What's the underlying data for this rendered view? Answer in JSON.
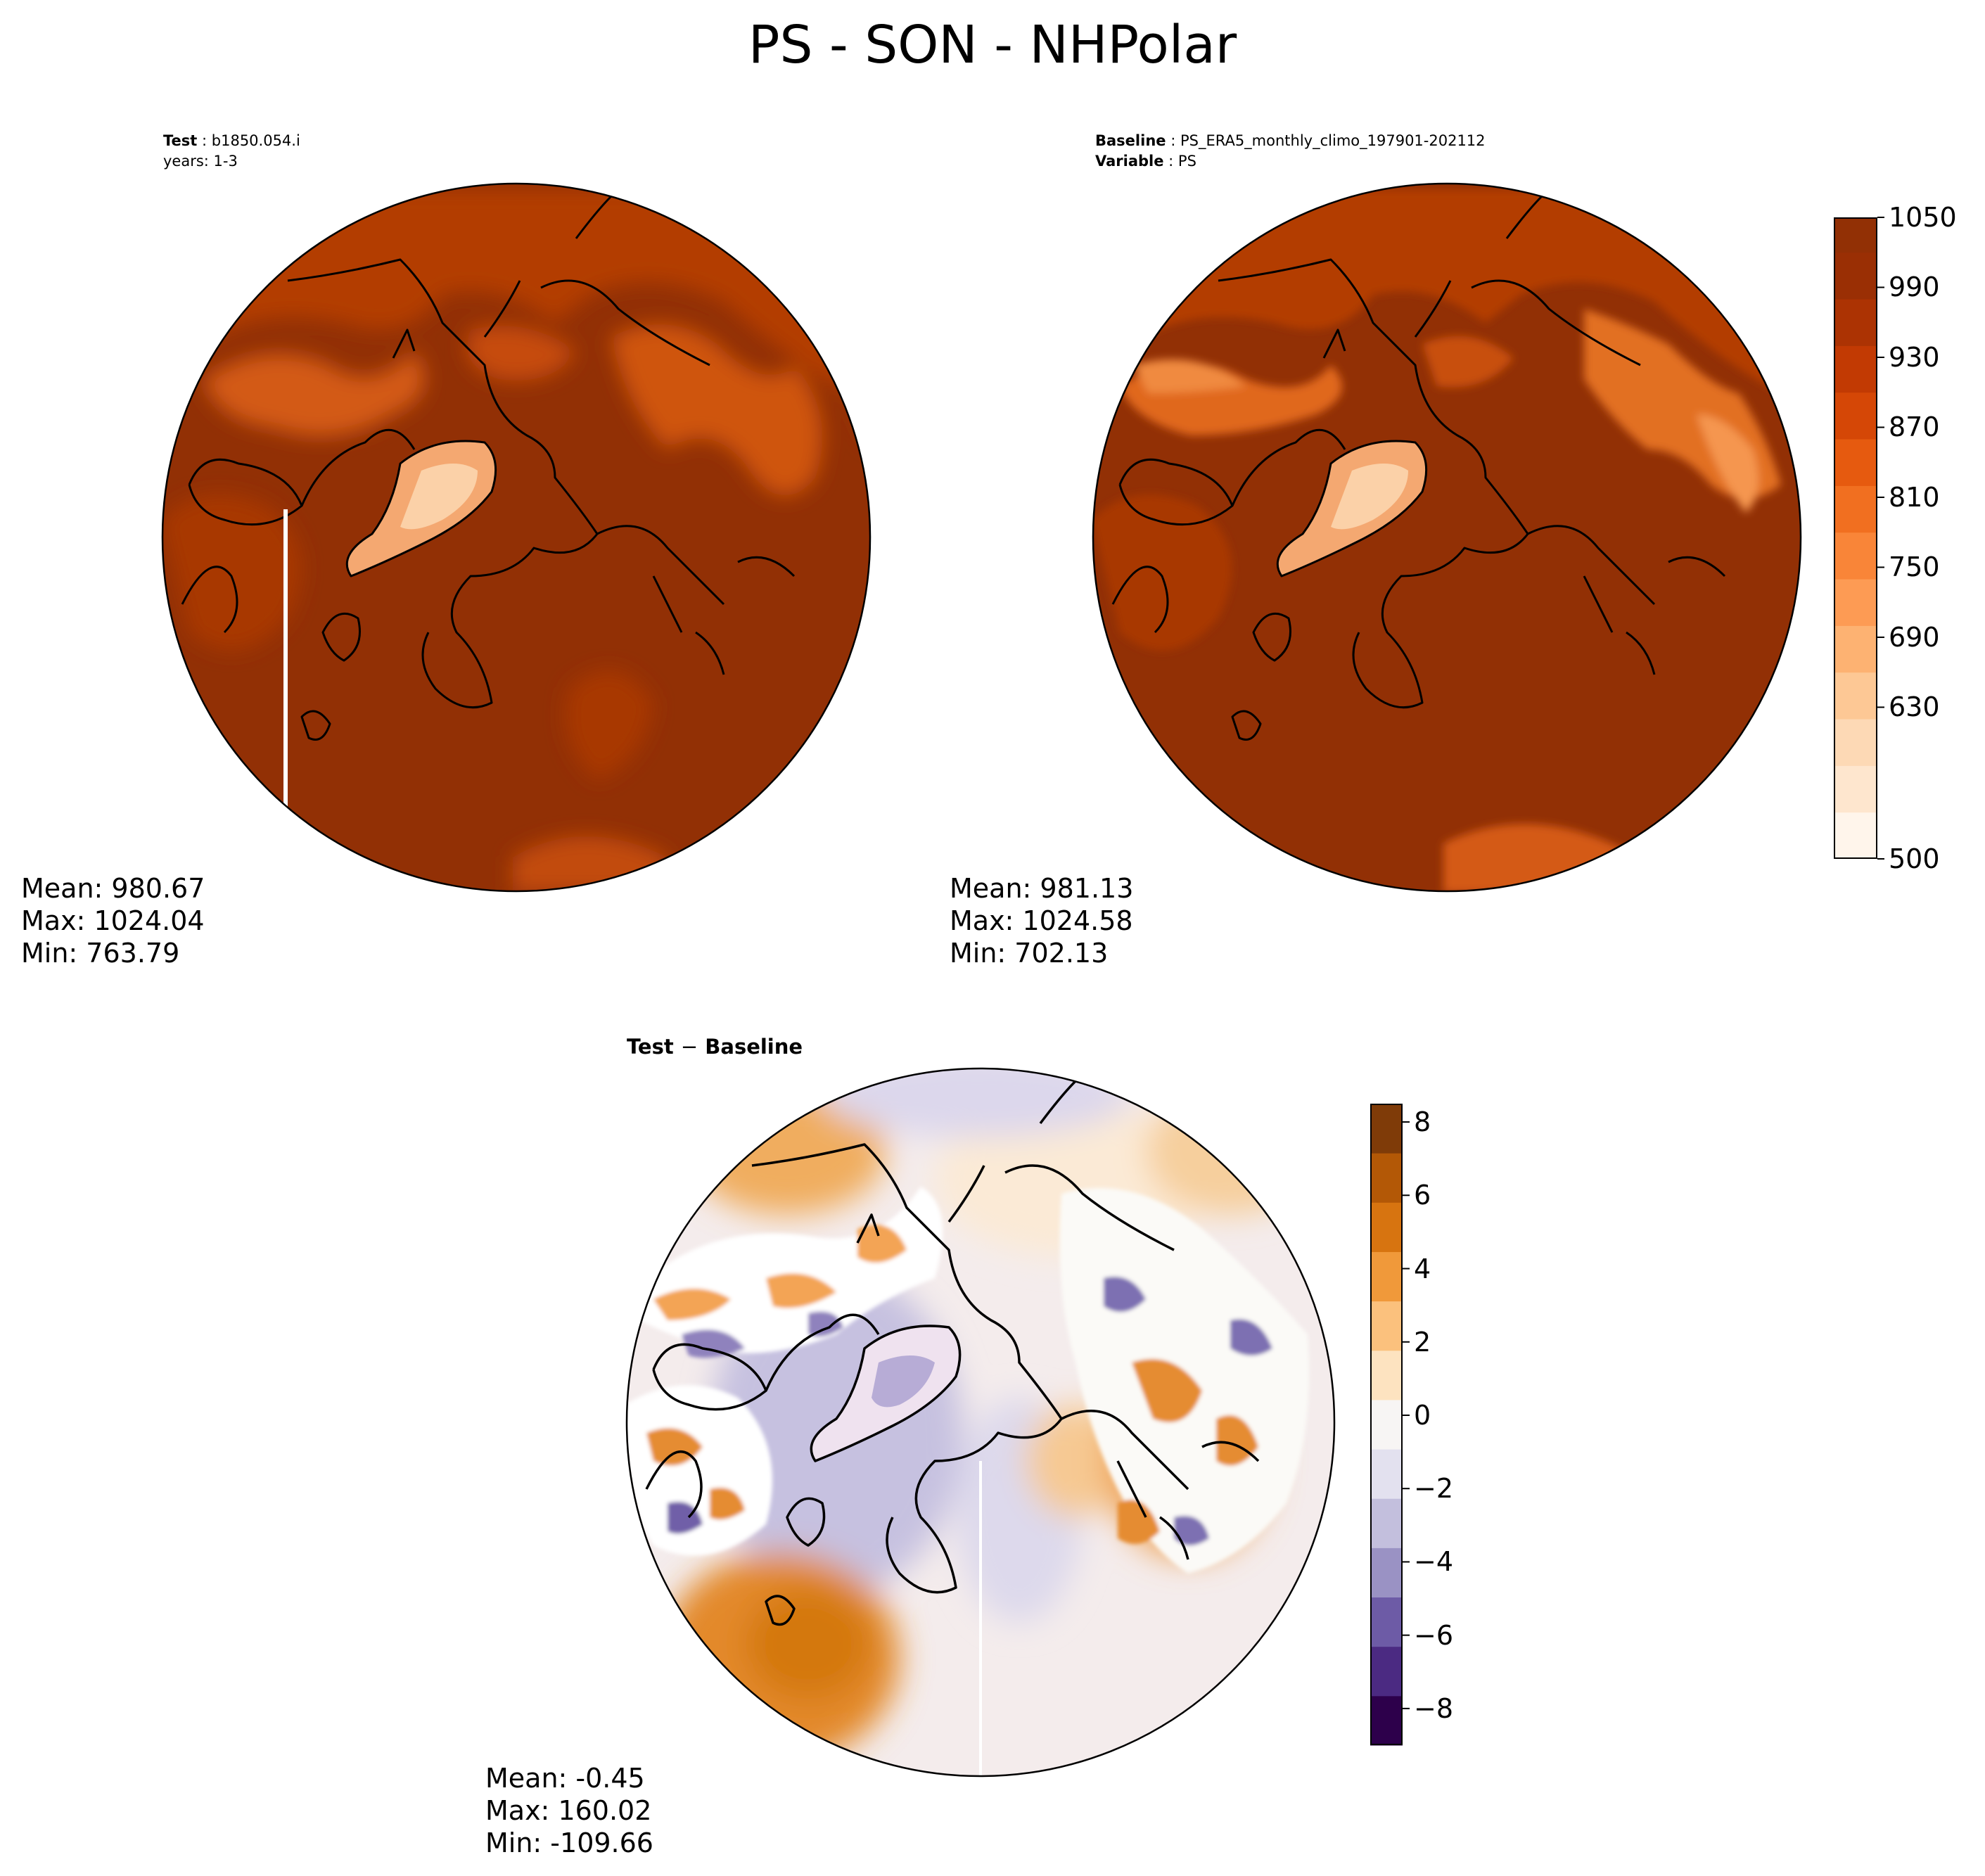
{
  "suptitle": "PS - SON - NHPolar",
  "test_panel": {
    "label_bold": "Test",
    "label_value": "b1850.054.i",
    "years_line": "years: 1-3",
    "stats": {
      "mean": "Mean: 980.67",
      "max": "Max: 1024.04",
      "min": "Min: 763.79"
    }
  },
  "baseline_panel": {
    "label_bold": "Baseline",
    "label_value": "PS_ERA5_monthly_climo_197901-202112",
    "variable_bold": "Variable",
    "variable_value": "PS",
    "stats": {
      "mean": "Mean: 981.13",
      "max": "Max: 1024.58",
      "min": "Min: 702.13"
    }
  },
  "diff_panel": {
    "title_left": "Test",
    "title_op": "−",
    "title_right": "Baseline",
    "stats": {
      "mean": "Mean: -0.45",
      "max": "Max: 160.02",
      "min": "Min: -109.66"
    }
  },
  "colors": {
    "field_background": "#923005",
    "land_high": "#c54906",
    "greenland": "#f4a871",
    "diff_ocean": "#f4ecec",
    "diff_warm": "#e79e4e",
    "diff_cool": "#d1cde6"
  },
  "chart_data": [
    {
      "type": "heatmap",
      "panel": "test",
      "projection": "north polar stereographic",
      "variable": "PS",
      "stats": {
        "mean": 980.67,
        "max": 1024.04,
        "min": 763.79
      }
    },
    {
      "type": "heatmap",
      "panel": "baseline",
      "projection": "north polar stereographic",
      "variable": "PS",
      "stats": {
        "mean": 981.13,
        "max": 1024.58,
        "min": 702.13
      },
      "colorbar": {
        "cmap": "Oranges",
        "range": [
          500,
          1050
        ],
        "tick_labels": [
          "1050",
          "990",
          "930",
          "870",
          "810",
          "750",
          "690",
          "630",
          "500"
        ],
        "tick_values": [
          1050,
          990,
          930,
          870,
          810,
          750,
          690,
          630,
          500
        ],
        "levels": [
          500,
          540,
          580,
          620,
          660,
          700,
          740,
          780,
          820,
          860,
          900,
          940,
          980,
          1020,
          1050
        ],
        "colors": [
          "#fff5eb",
          "#fee6ce",
          "#fdd9b5",
          "#fdc895",
          "#fdb272",
          "#fd9b54",
          "#f98538",
          "#f16f20",
          "#e65a0f",
          "#d54706",
          "#c23a03",
          "#ac3303",
          "#9a2f04",
          "#923005"
        ]
      }
    },
    {
      "type": "heatmap",
      "panel": "difference",
      "projection": "north polar stereographic",
      "variable": "PS",
      "stats": {
        "mean": -0.45,
        "max": 160.02,
        "min": -109.66
      },
      "colorbar": {
        "cmap": "PuOr_r",
        "range": [
          -9,
          8.5
        ],
        "tick_labels": [
          "8",
          "6",
          "4",
          "2",
          "0",
          "−2",
          "−4",
          "−6",
          "−8"
        ],
        "tick_values": [
          8,
          6,
          4,
          2,
          0,
          -2,
          -4,
          -6,
          -8
        ],
        "colors": [
          "#2d004b",
          "#4b2a82",
          "#6d5ba6",
          "#9a92c4",
          "#c3bfdd",
          "#e3e1ef",
          "#f7f5f4",
          "#fde3c0",
          "#fbc17d",
          "#f0993a",
          "#d77410",
          "#b35806",
          "#7f3b08"
        ]
      }
    }
  ]
}
